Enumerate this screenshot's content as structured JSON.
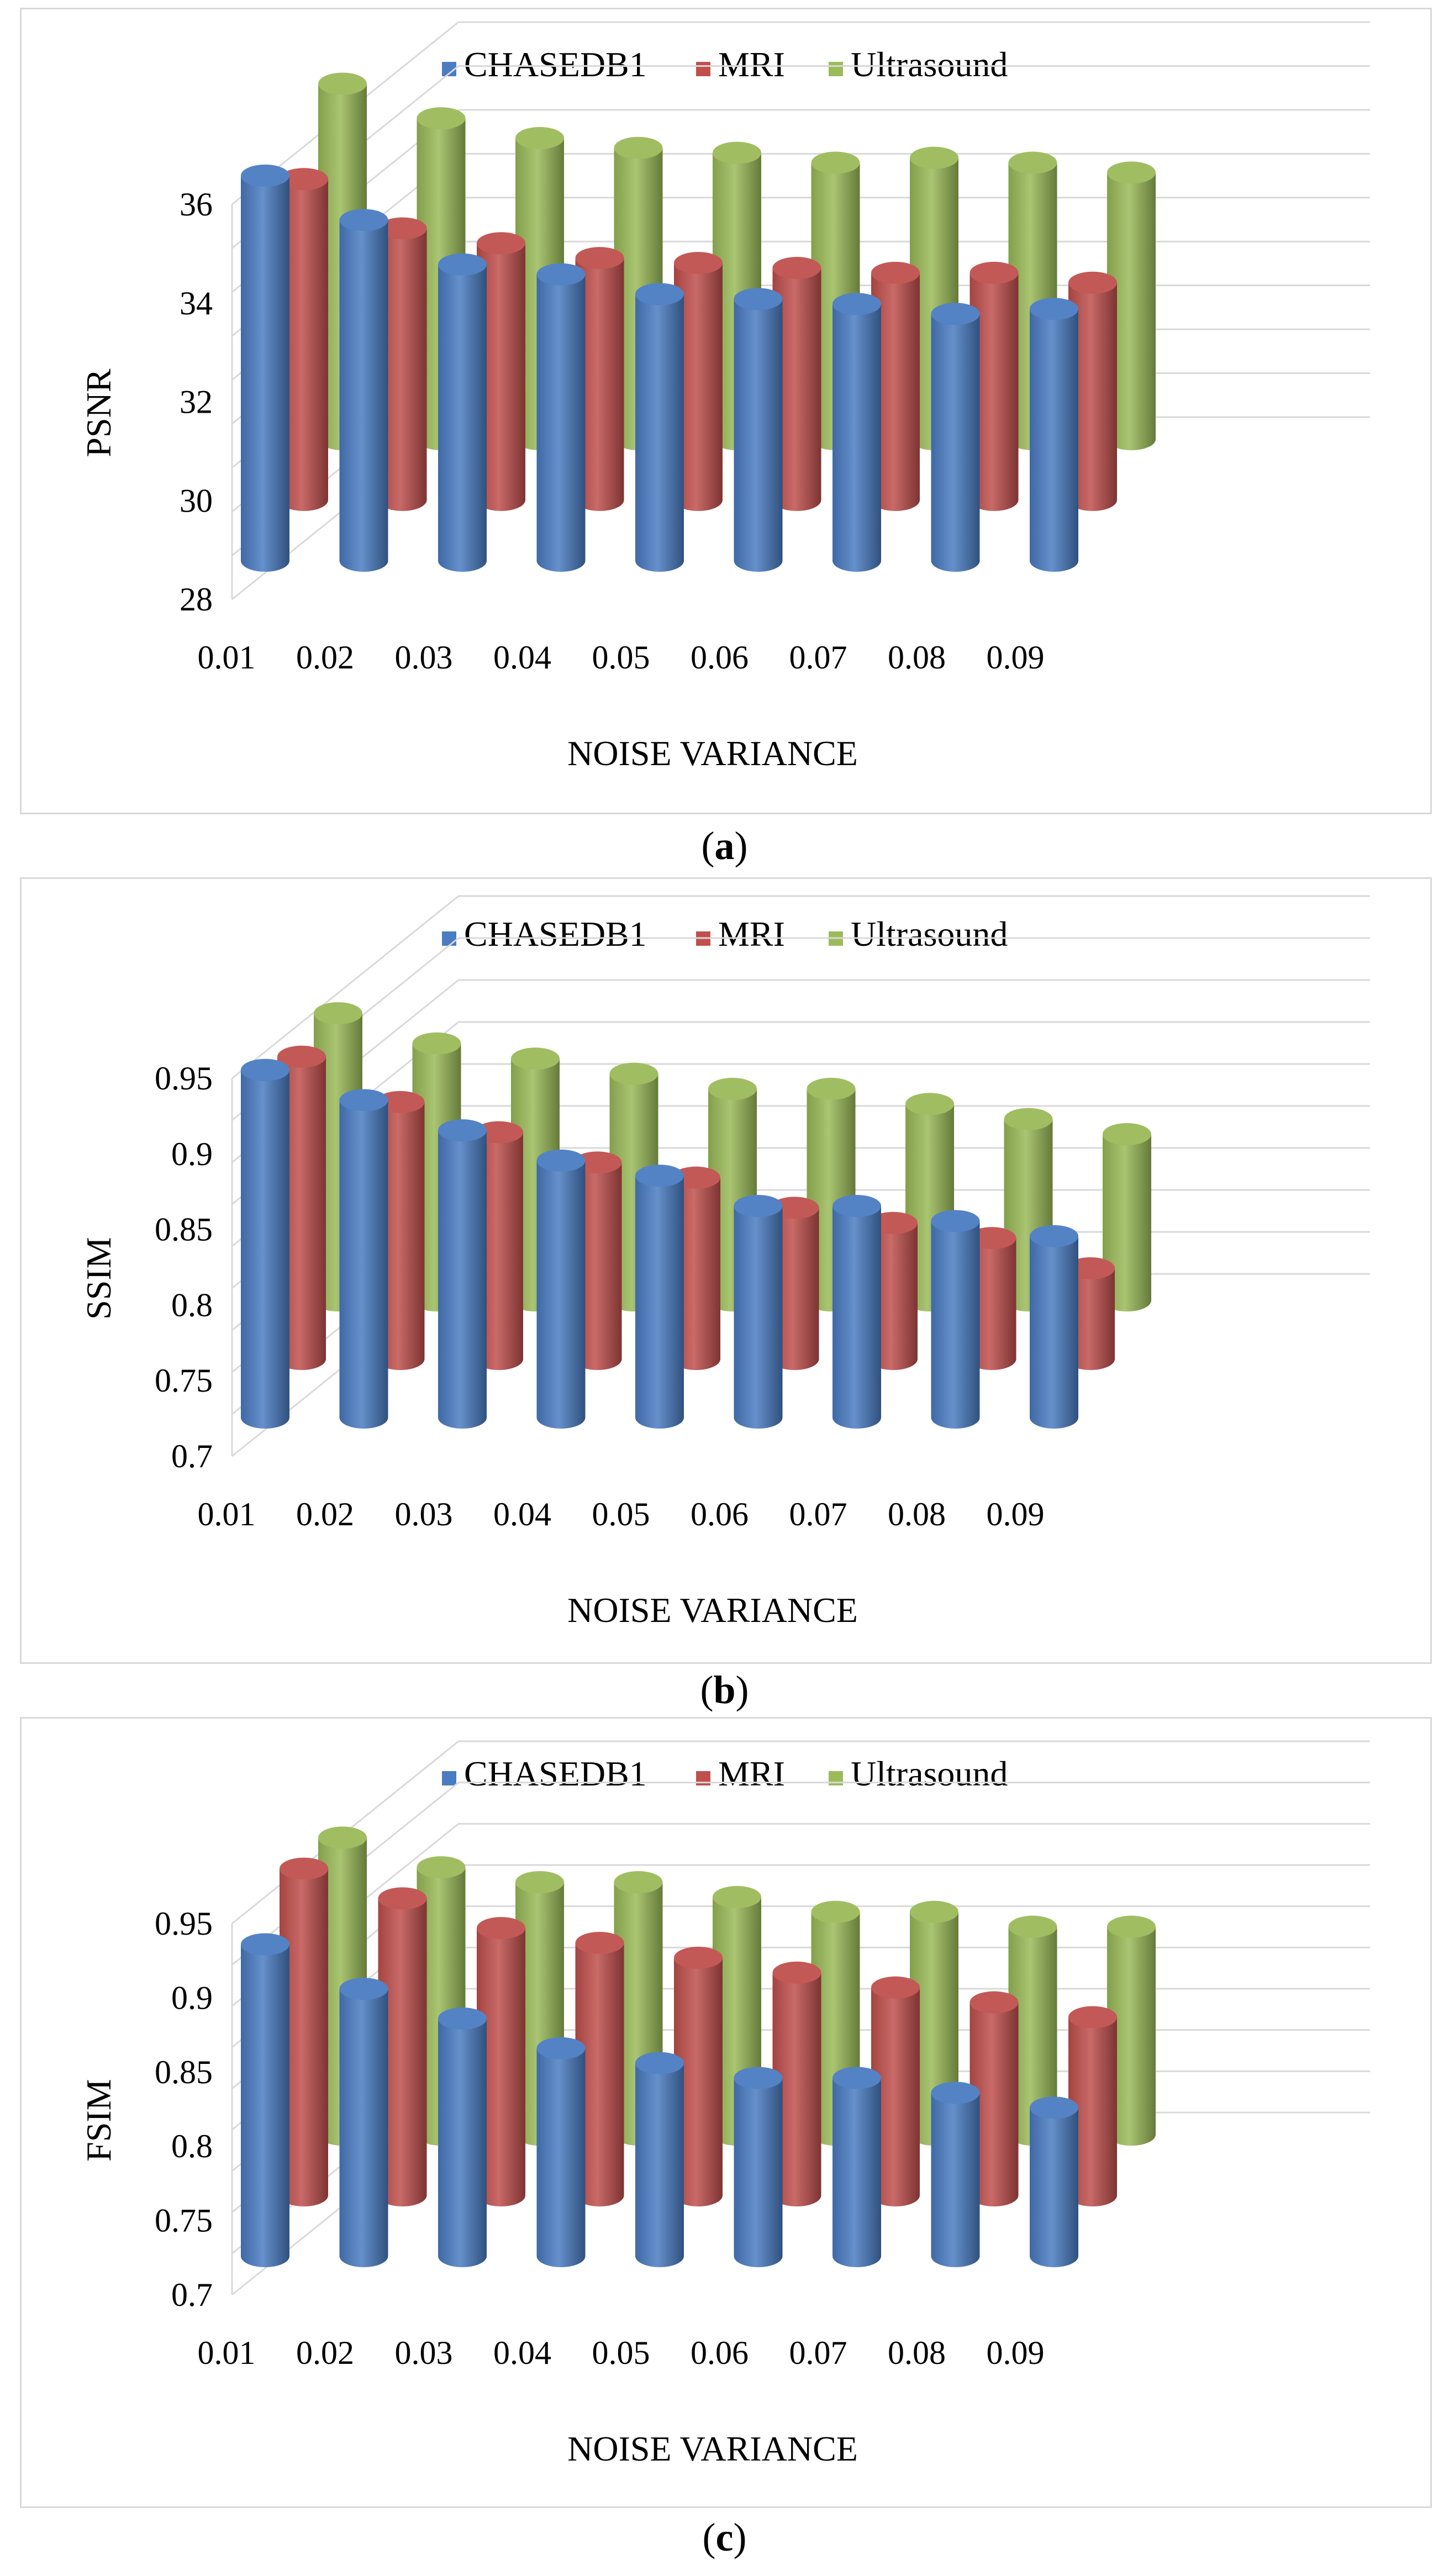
{
  "chart_data": [
    {
      "type": "bar",
      "style": "3d-cylinder",
      "caption": "(a)",
      "caption_letter": "a",
      "ylabel": "PSNR",
      "xlabel": "NOISE VARIANCE",
      "ylim": [
        28,
        36
      ],
      "yticks": [
        "28",
        "30",
        "32",
        "34",
        "36"
      ],
      "categories": [
        "0.01",
        "0.02",
        "0.03",
        "0.04",
        "0.05",
        "0.06",
        "0.07",
        "0.08",
        "0.09"
      ],
      "series": [
        {
          "name": "CHASEDB1",
          "color": "#4a7cc2",
          "values": [
            35.8,
            34.9,
            34.0,
            33.8,
            33.4,
            33.3,
            33.2,
            33.0,
            33.1
          ]
        },
        {
          "name": "MRI",
          "color": "#c0504d",
          "values": [
            34.5,
            33.5,
            33.2,
            32.9,
            32.8,
            32.7,
            32.6,
            32.6,
            32.4
          ]
        },
        {
          "name": "Ultrasound",
          "color": "#9bbb59",
          "values": [
            35.2,
            34.5,
            34.1,
            33.9,
            33.8,
            33.6,
            33.7,
            33.6,
            33.4
          ]
        }
      ]
    },
    {
      "type": "bar",
      "style": "3d-cylinder",
      "caption": "(b)",
      "caption_letter": "b",
      "ylabel": "SSIM",
      "xlabel": "NOISE VARIANCE",
      "ylim": [
        0.7,
        0.95
      ],
      "yticks": [
        "0.7",
        "0.75",
        "0.8",
        "0.85",
        "0.9",
        "0.95"
      ],
      "categories": [
        "0.01",
        "0.02",
        "0.03",
        "0.04",
        "0.05",
        "0.06",
        "0.07",
        "0.08",
        "0.09"
      ],
      "series": [
        {
          "name": "CHASEDB1",
          "color": "#4a7cc2",
          "values": [
            0.93,
            0.91,
            0.89,
            0.87,
            0.86,
            0.84,
            0.84,
            0.83,
            0.82
          ]
        },
        {
          "name": "MRI",
          "color": "#c0504d",
          "values": [
            0.9,
            0.87,
            0.85,
            0.83,
            0.82,
            0.8,
            0.79,
            0.78,
            0.76
          ]
        },
        {
          "name": "Ultrasound",
          "color": "#9bbb59",
          "values": [
            0.89,
            0.87,
            0.86,
            0.85,
            0.84,
            0.84,
            0.83,
            0.82,
            0.81
          ]
        }
      ]
    },
    {
      "type": "bar",
      "style": "3d-cylinder",
      "caption": "(c)",
      "caption_letter": "c",
      "ylabel": "FSIM",
      "xlabel": "NOISE VARIANCE",
      "ylim": [
        0.7,
        0.95
      ],
      "yticks": [
        "0.7",
        "0.75",
        "0.8",
        "0.85",
        "0.9",
        "0.95"
      ],
      "categories": [
        "0.01",
        "0.02",
        "0.03",
        "0.04",
        "0.05",
        "0.06",
        "0.07",
        "0.08",
        "0.09"
      ],
      "series": [
        {
          "name": "CHASEDB1",
          "color": "#4a7cc2",
          "values": [
            0.91,
            0.88,
            0.86,
            0.84,
            0.83,
            0.82,
            0.82,
            0.81,
            0.8
          ]
        },
        {
          "name": "MRI",
          "color": "#c0504d",
          "values": [
            0.92,
            0.9,
            0.88,
            0.87,
            0.86,
            0.85,
            0.84,
            0.83,
            0.82
          ]
        },
        {
          "name": "Ultrasound",
          "color": "#9bbb59",
          "values": [
            0.9,
            0.88,
            0.87,
            0.87,
            0.86,
            0.85,
            0.85,
            0.84,
            0.84
          ]
        }
      ]
    }
  ]
}
